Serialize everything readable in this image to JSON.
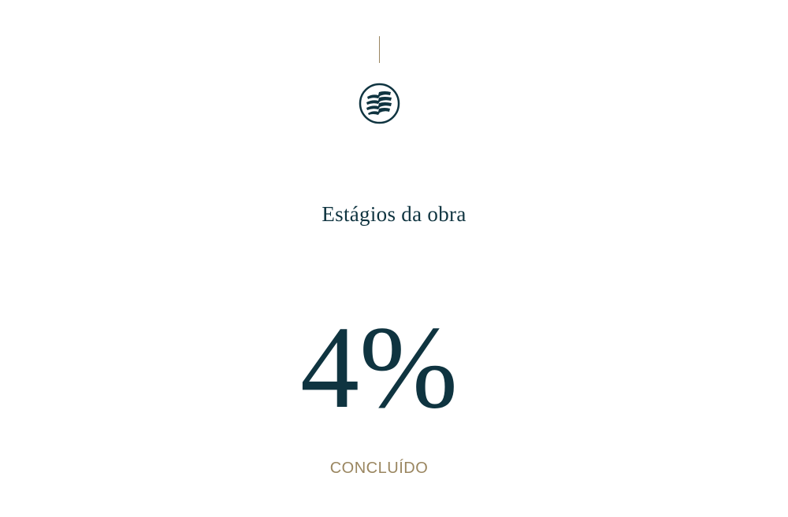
{
  "logo": {
    "icon": "brand-logo-icon",
    "color": "#0f3440"
  },
  "accent_color": "#9a8660",
  "section": {
    "title": "Estágios da obra",
    "progress_percent": 4,
    "progress_label": "4%",
    "status_label": "CONCLUÍDO"
  }
}
